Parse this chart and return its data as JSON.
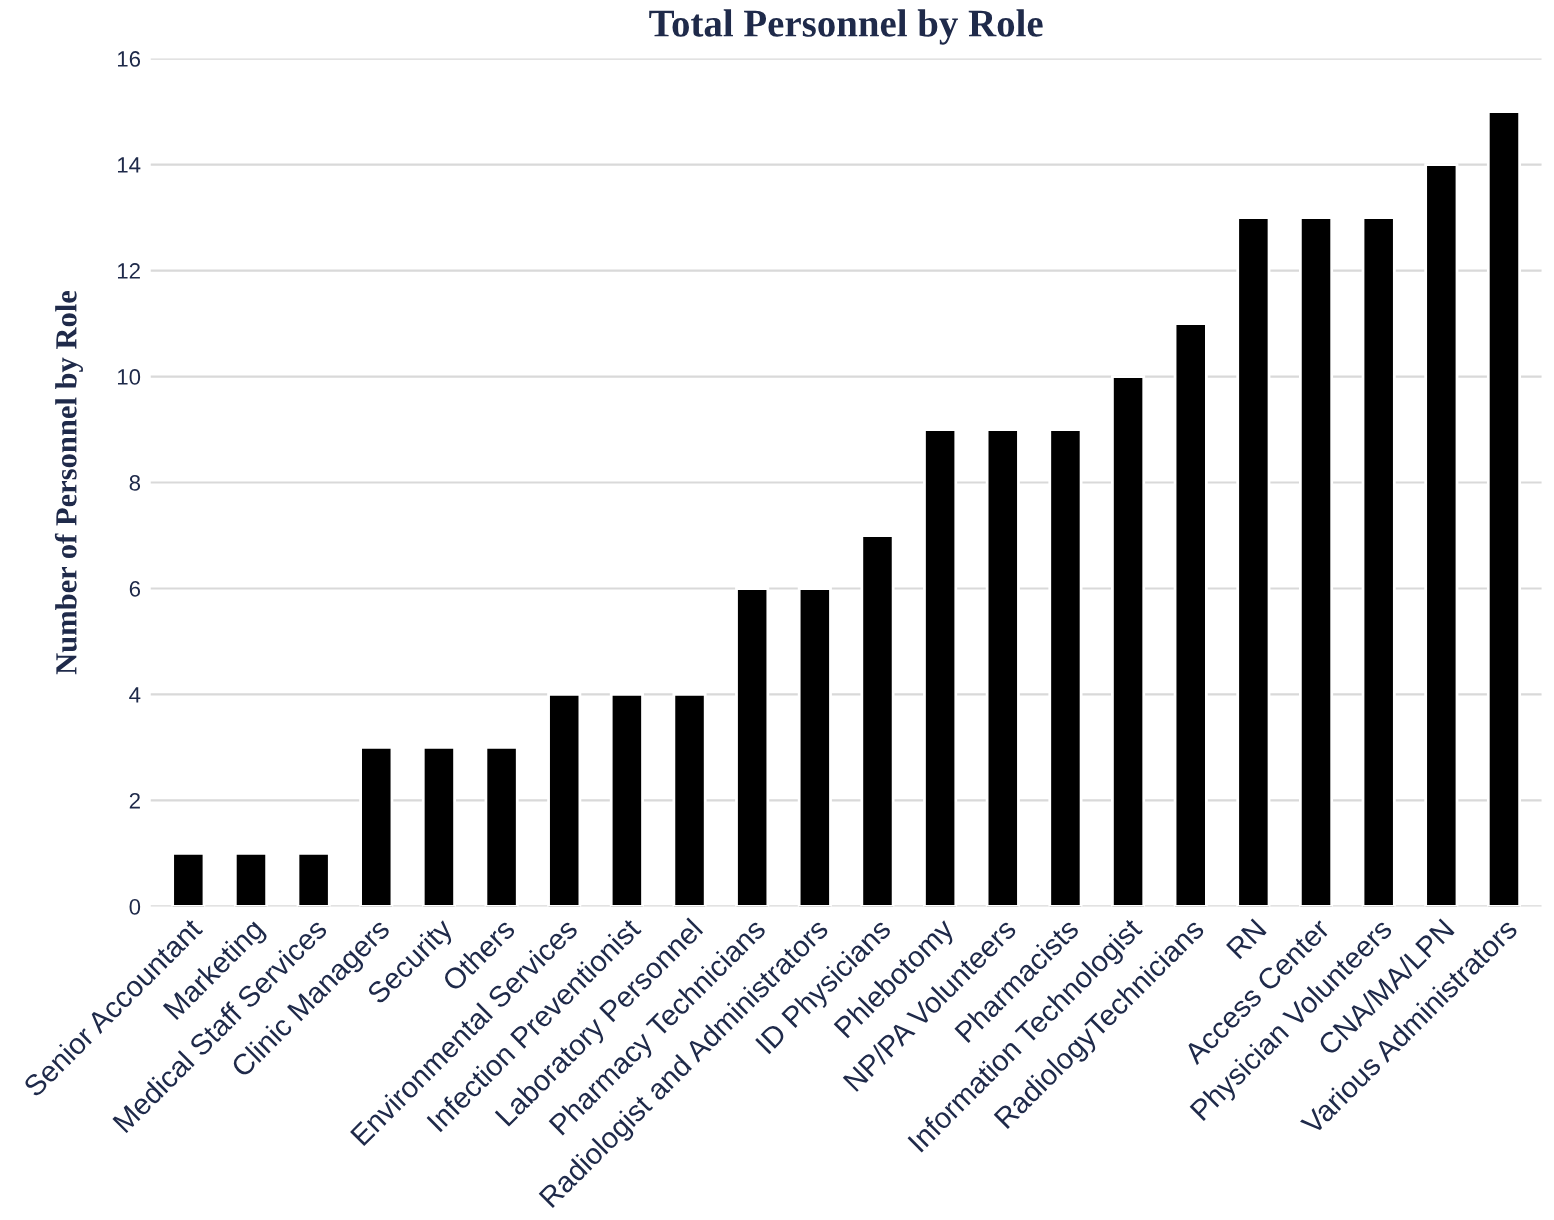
{
  "chart_data": {
    "type": "bar",
    "title": "Total Personnel by Role",
    "ylabel": "Number of Personnel by Role",
    "categories": [
      "Senior Accountant",
      "Marketing",
      "Medical Staff Services",
      "Clinic Managers",
      "Security",
      "Others",
      "Environmental Services",
      "Infection Preventionist",
      "Laboratory Personnel",
      "Pharmacy Technicians",
      "Radiologist and Administrators",
      "ID Physicians",
      "Phlebotomy",
      "NP/PA Volunteers",
      "Pharmacists",
      "Information Technologist",
      "RadiologyTechnicians",
      "RN",
      "Access Center",
      "Physician Volunteers",
      "CNA/MA/LPN",
      "Various Administrators"
    ],
    "values": [
      1,
      1,
      1,
      3,
      3,
      3,
      4,
      4,
      4,
      6,
      6,
      7,
      9,
      9,
      9,
      10,
      11,
      13,
      13,
      13,
      14,
      15
    ],
    "color": "#000000",
    "ylim": [
      0,
      16
    ],
    "yticks": [
      0,
      2,
      4,
      6,
      8,
      10,
      12,
      14,
      16
    ],
    "grid": "y"
  }
}
